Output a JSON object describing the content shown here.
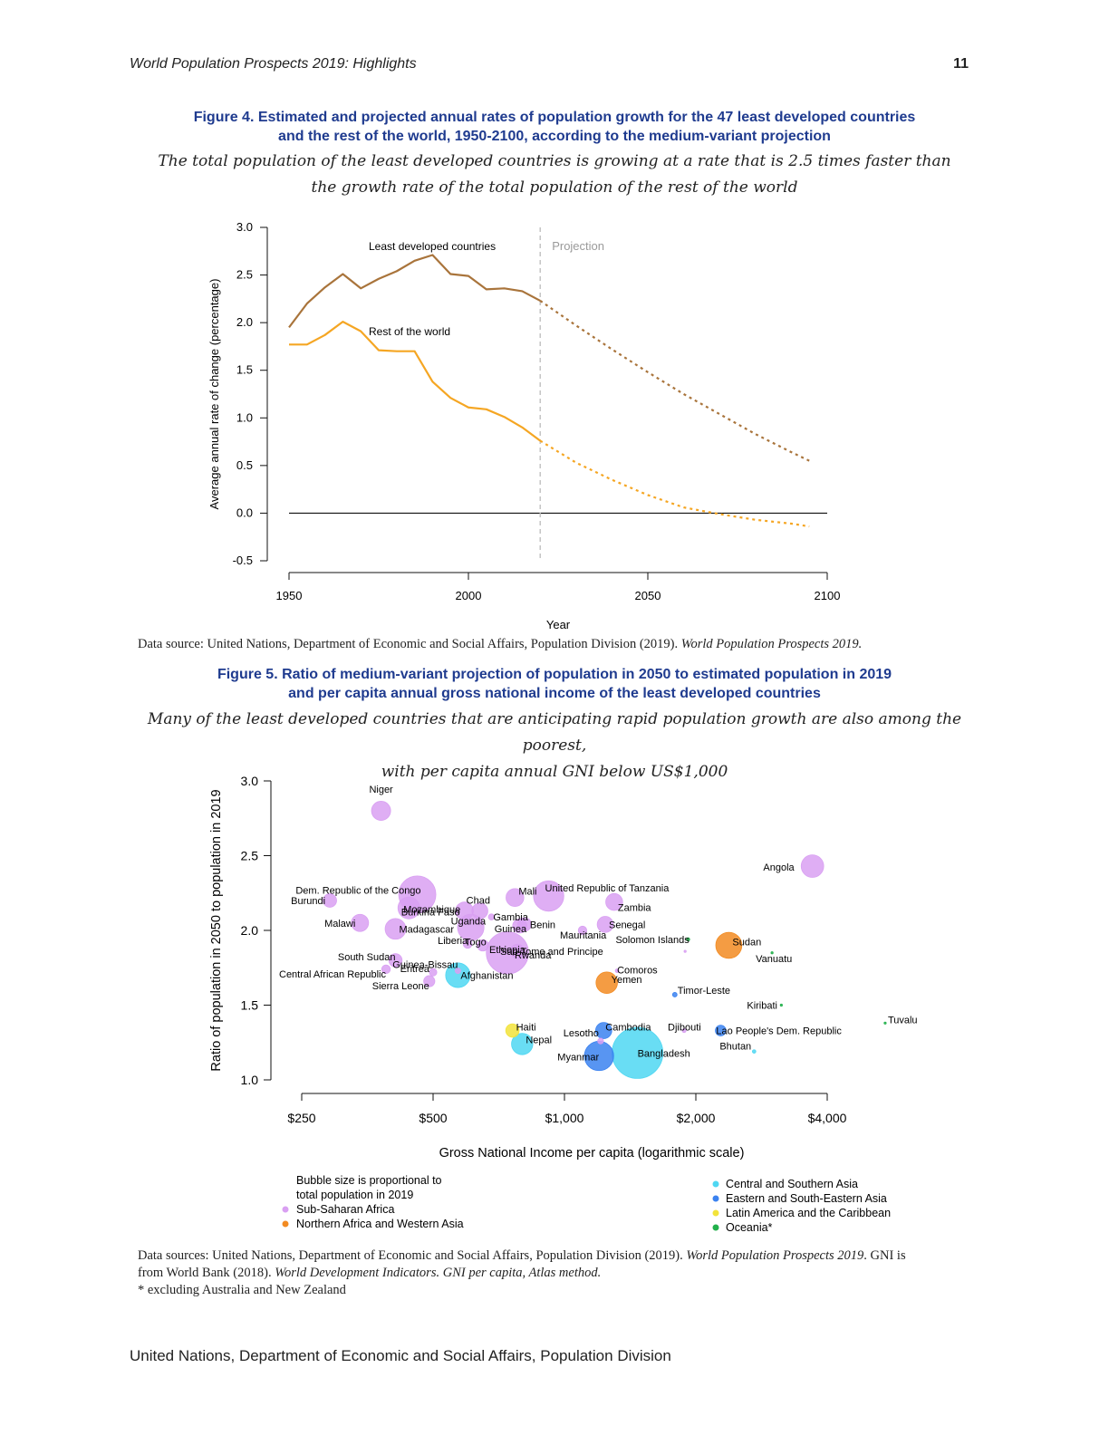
{
  "header": {
    "title": "World Population Prospects 2019: Highlights",
    "page_number": "11"
  },
  "figure4": {
    "title_line1": "Figure 4. Estimated and projected annual rates of population growth for the 47 least developed countries",
    "title_line2": "and the rest of the world, 1950-2100, according to the medium-variant projection",
    "subtitle_line1": "The total population of the least developed countries is growing at a rate that is 2.5 times faster than",
    "subtitle_line2": "the growth rate of the total population of the rest of the world",
    "source_text": "Data source: United Nations, Department of Economic and Social Affairs, Population Division (2019). ",
    "source_italic": "World Population Prospects 2019."
  },
  "figure5": {
    "title_line1": "Figure 5. Ratio of medium-variant projection of population in 2050 to estimated population in 2019",
    "title_line2": "and per capita annual gross national income of the least developed countries",
    "subtitle_line1": "Many of the least developed countries that are anticipating rapid population growth are also among the poorest,",
    "subtitle_line2": "with per capita annual GNI below US$1,000",
    "source_line1_a": "Data sources: United Nations, Department of Economic and Social Affairs, Population Division (2019). ",
    "source_line1_b": "World Population Prospects 2019",
    "source_line1_c": ". GNI is",
    "source_line2_a": "from World Bank (2018). ",
    "source_line2_b": "World Development Indicators. GNI per capita, Atlas method.",
    "source_line3": "* excluding Australia and New Zealand"
  },
  "footer": {
    "text": "United Nations, Department of Economic and Social Affairs, Population Division"
  },
  "chart_data": [
    {
      "type": "line",
      "xlabel": "Year",
      "ylabel": "Average annual rate of change (percentage)",
      "xlim": [
        1950,
        2100
      ],
      "ylim": [
        -0.5,
        3.0
      ],
      "x_ticks": [
        "1950",
        "2000",
        "2050",
        "2100"
      ],
      "y_ticks": [
        "3.0",
        "2.5",
        "2.0",
        "1.5",
        "1.0",
        "0.5",
        "0.0",
        "-0.5"
      ],
      "projection_label": "Projection",
      "projection_start": 2020,
      "colors": {
        "ldc": "#a9743b",
        "rest": "#f5a623",
        "zero": "#111111",
        "divider": "#bbbbbb"
      },
      "series": [
        {
          "name": "Least developed countries",
          "estimated": {
            "x": [
              1950,
              1955,
              1960,
              1965,
              1970,
              1975,
              1980,
              1985,
              1990,
              1995,
              2000,
              2005,
              2010,
              2015,
              2020
            ],
            "y": [
              1.95,
              2.2,
              2.37,
              2.51,
              2.36,
              2.46,
              2.54,
              2.65,
              2.71,
              2.51,
              2.49,
              2.35,
              2.36,
              2.33,
              2.23
            ]
          },
          "projected": {
            "x": [
              2020,
              2030,
              2040,
              2050,
              2060,
              2070,
              2080,
              2090,
              2095
            ],
            "y": [
              2.23,
              1.97,
              1.72,
              1.48,
              1.25,
              1.04,
              0.83,
              0.64,
              0.55
            ]
          }
        },
        {
          "name": "Rest of the world",
          "estimated": {
            "x": [
              1950,
              1955,
              1960,
              1965,
              1970,
              1975,
              1980,
              1985,
              1990,
              1995,
              2000,
              2005,
              2010,
              2015,
              2020
            ],
            "y": [
              1.77,
              1.77,
              1.87,
              2.01,
              1.91,
              1.71,
              1.7,
              1.7,
              1.38,
              1.21,
              1.11,
              1.09,
              1.01,
              0.9,
              0.76
            ]
          },
          "projected": {
            "x": [
              2020,
              2030,
              2040,
              2050,
              2060,
              2070,
              2080,
              2090,
              2095
            ],
            "y": [
              0.76,
              0.53,
              0.35,
              0.19,
              0.06,
              -0.01,
              -0.07,
              -0.11,
              -0.14
            ]
          }
        }
      ]
    },
    {
      "type": "scatter",
      "xlabel": "Gross National Income per capita (logarithmic scale)",
      "ylabel": "Ratio of population in 2050 to population in 2019",
      "x_scale": "log",
      "xlim": [
        250,
        4000
      ],
      "ylim": [
        1.0,
        3.0
      ],
      "x_ticks": [
        {
          "value": 250,
          "label": "$250"
        },
        {
          "value": 500,
          "label": "$500"
        },
        {
          "value": 1000,
          "label": "$1,000"
        },
        {
          "value": 2000,
          "label": "$2,000"
        },
        {
          "value": 4000,
          "label": "$4,000"
        }
      ],
      "y_ticks": [
        "3.0",
        "2.5",
        "2.0",
        "1.5",
        "1.0"
      ],
      "bubble_note_line1": "Bubble size is proportional to",
      "bubble_note_line2": "total population in 2019",
      "regions": [
        {
          "name": "Sub-Saharan Africa",
          "color": "#d9a0f2"
        },
        {
          "name": "Northern Africa and Western Asia",
          "color": "#f28b22"
        },
        {
          "name": "Central and Southern Asia",
          "color": "#4fd7f2"
        },
        {
          "name": "Eastern and South-Eastern Asia",
          "color": "#3b82f0"
        },
        {
          "name": "Latin America and the Caribbean",
          "color": "#f2e33b"
        },
        {
          "name": "Oceania*",
          "color": "#22b04b"
        }
      ],
      "points": [
        {
          "name": "Niger",
          "gni": 380,
          "ratio": 2.8,
          "pop": 23,
          "region": 0
        },
        {
          "name": "Angola",
          "gni": 3700,
          "ratio": 2.43,
          "pop": 32,
          "region": 0
        },
        {
          "name": "Dem. Republic of the Congo",
          "gni": 460,
          "ratio": 2.24,
          "pop": 87,
          "region": 0
        },
        {
          "name": "Burundi",
          "gni": 290,
          "ratio": 2.2,
          "pop": 11.5,
          "region": 0
        },
        {
          "name": "Mozambique",
          "gni": 440,
          "ratio": 2.15,
          "pop": 30,
          "region": 0
        },
        {
          "name": "Burkina Faso",
          "gni": 590,
          "ratio": 2.13,
          "pop": 20,
          "region": 0
        },
        {
          "name": "Chad",
          "gni": 640,
          "ratio": 2.13,
          "pop": 16,
          "region": 0
        },
        {
          "name": "Mali",
          "gni": 770,
          "ratio": 2.22,
          "pop": 20,
          "region": 0
        },
        {
          "name": "United Republic of Tanzania",
          "gni": 920,
          "ratio": 2.23,
          "pop": 58,
          "region": 0
        },
        {
          "name": "Zambia",
          "gni": 1300,
          "ratio": 2.19,
          "pop": 18,
          "region": 0
        },
        {
          "name": "Malawi",
          "gni": 340,
          "ratio": 2.05,
          "pop": 18.6,
          "region": 0
        },
        {
          "name": "Madagascar",
          "gni": 410,
          "ratio": 2.01,
          "pop": 27,
          "region": 0
        },
        {
          "name": "Uganda",
          "gni": 610,
          "ratio": 2.02,
          "pop": 44,
          "region": 0
        },
        {
          "name": "Gambia",
          "gni": 680,
          "ratio": 2.09,
          "pop": 2.3,
          "region": 0
        },
        {
          "name": "Guinea",
          "gni": 790,
          "ratio": 2.03,
          "pop": 12.8,
          "region": 0
        },
        {
          "name": "Benin",
          "gni": 810,
          "ratio": 2.04,
          "pop": 11.8,
          "region": 0
        },
        {
          "name": "Senegal",
          "gni": 1240,
          "ratio": 2.04,
          "pop": 16.3,
          "region": 0
        },
        {
          "name": "Mauritania",
          "gni": 1100,
          "ratio": 2.0,
          "pop": 4.5,
          "region": 0
        },
        {
          "name": "Solomon Islands",
          "gni": 1920,
          "ratio": 1.94,
          "pop": 0.67,
          "region": 5
        },
        {
          "name": "Sao Tome and Principe",
          "gni": 1890,
          "ratio": 1.86,
          "pop": 0.2,
          "region": 0
        },
        {
          "name": "Sudan",
          "gni": 2380,
          "ratio": 1.9,
          "pop": 42.8,
          "region": 1
        },
        {
          "name": "Vanuatu",
          "gni": 2990,
          "ratio": 1.85,
          "pop": 0.3,
          "region": 5
        },
        {
          "name": "Liberia",
          "gni": 600,
          "ratio": 1.91,
          "pop": 4.9,
          "region": 0
        },
        {
          "name": "Togo",
          "gni": 650,
          "ratio": 1.9,
          "pop": 8.1,
          "region": 0
        },
        {
          "name": "Ethiopia",
          "gni": 740,
          "ratio": 1.85,
          "pop": 112,
          "region": 0
        },
        {
          "name": "Rwanda",
          "gni": 780,
          "ratio": 1.86,
          "pop": 12.6,
          "region": 0
        },
        {
          "name": "South Sudan",
          "gni": 410,
          "ratio": 1.8,
          "pop": 11,
          "region": 0
        },
        {
          "name": "Central African Republic",
          "gni": 390,
          "ratio": 1.74,
          "pop": 4.7,
          "region": 0
        },
        {
          "name": "Guinea-Bissau",
          "gni": 570,
          "ratio": 1.73,
          "pop": 1.9,
          "region": 0
        },
        {
          "name": "Eritrea",
          "gni": 500,
          "ratio": 1.72,
          "pop": 3.5,
          "region": 0
        },
        {
          "name": "Afghanistan",
          "gni": 570,
          "ratio": 1.7,
          "pop": 38,
          "region": 2
        },
        {
          "name": "Sierra Leone",
          "gni": 490,
          "ratio": 1.66,
          "pop": 7.8,
          "region": 0
        },
        {
          "name": "Comoros",
          "gni": 1320,
          "ratio": 1.73,
          "pop": 0.85,
          "region": 0
        },
        {
          "name": "Yemen",
          "gni": 1250,
          "ratio": 1.65,
          "pop": 29,
          "region": 1
        },
        {
          "name": "Timor-Leste",
          "gni": 1790,
          "ratio": 1.57,
          "pop": 1.3,
          "region": 3
        },
        {
          "name": "Kiribati",
          "gni": 3140,
          "ratio": 1.5,
          "pop": 0.12,
          "region": 5
        },
        {
          "name": "Tuvalu",
          "gni": 5430,
          "ratio": 1.38,
          "pop": 0.012,
          "region": 5
        },
        {
          "name": "Haiti",
          "gni": 760,
          "ratio": 1.33,
          "pop": 11.3,
          "region": 4
        },
        {
          "name": "Nepal",
          "gni": 800,
          "ratio": 1.24,
          "pop": 28.6,
          "region": 2
        },
        {
          "name": "Lesotho",
          "gni": 1210,
          "ratio": 1.26,
          "pop": 2.1,
          "region": 0
        },
        {
          "name": "Cambodia",
          "gni": 1230,
          "ratio": 1.33,
          "pop": 16.5,
          "region": 3
        },
        {
          "name": "Myanmar",
          "gni": 1200,
          "ratio": 1.16,
          "pop": 54,
          "region": 3
        },
        {
          "name": "Bangladesh",
          "gni": 1470,
          "ratio": 1.18,
          "pop": 163,
          "region": 2
        },
        {
          "name": "Djibouti",
          "gni": 1880,
          "ratio": 1.33,
          "pop": 0.97,
          "region": 0
        },
        {
          "name": "Lao People's Dem. Republic",
          "gni": 2280,
          "ratio": 1.33,
          "pop": 7.2,
          "region": 3
        },
        {
          "name": "Bhutan",
          "gni": 2720,
          "ratio": 1.19,
          "pop": 0.76,
          "region": 2
        }
      ]
    }
  ]
}
